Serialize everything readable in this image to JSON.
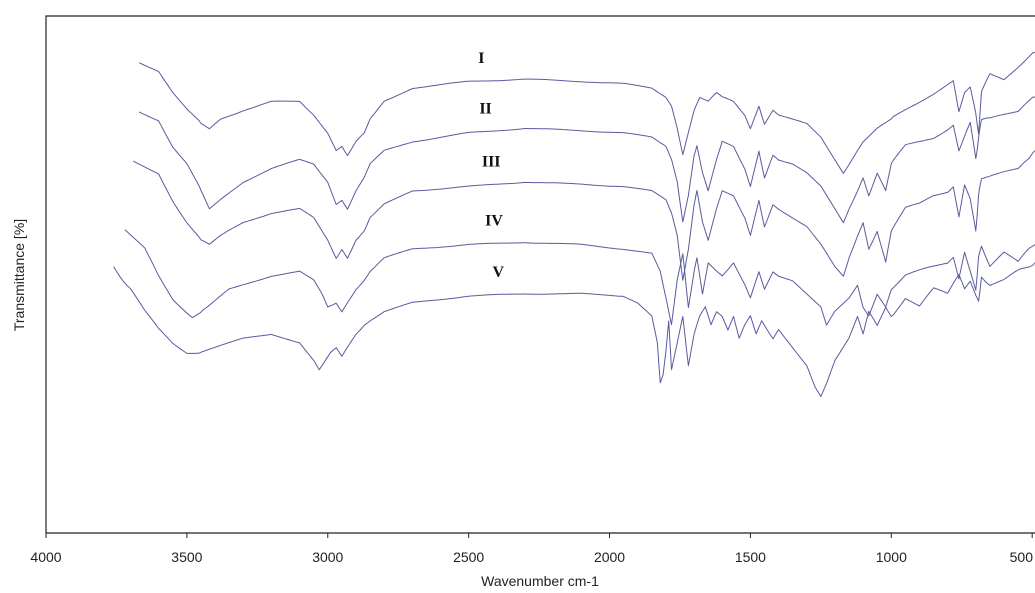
{
  "chart_data": {
    "type": "line",
    "xlabel": "Wavenumber cm-1",
    "ylabel": "Transmittance [%]",
    "xlim": [
      4000,
      490
    ],
    "x_reversed": true,
    "x_ticks": [
      4000,
      3500,
      3000,
      2500,
      2000,
      1500,
      1000,
      500
    ],
    "y_ticks": [],
    "grid": false,
    "legend": "none",
    "series_color": "#5a5aa0",
    "series": [
      {
        "name": "I",
        "x": [
          3670,
          3600,
          3550,
          3500,
          3450,
          3420,
          3380,
          3300,
          3200,
          3100,
          3050,
          3000,
          2970,
          2950,
          2930,
          2900,
          2870,
          2850,
          2800,
          2700,
          2500,
          2300,
          2100,
          1950,
          1850,
          1800,
          1780,
          1760,
          1740,
          1720,
          1700,
          1680,
          1650,
          1620,
          1600,
          1560,
          1520,
          1500,
          1470,
          1450,
          1420,
          1400,
          1350,
          1300,
          1250,
          1200,
          1170,
          1150,
          1120,
          1100,
          1050,
          1000,
          950,
          900,
          850,
          800,
          780,
          760,
          740,
          720,
          700,
          690,
          680,
          650,
          600,
          550,
          510,
          490
        ],
        "y": [
          73,
          71,
          66,
          62,
          59,
          58,
          60,
          62,
          64,
          64,
          61,
          57,
          53,
          54,
          52,
          55,
          57,
          60,
          64,
          67,
          68.5,
          69,
          68.5,
          68,
          67,
          65,
          63,
          58,
          52,
          57,
          62,
          65,
          64,
          66,
          65,
          64,
          61,
          58,
          63,
          59,
          62,
          61,
          60,
          59,
          56,
          51,
          48,
          50,
          53,
          55,
          58,
          60,
          62,
          64,
          66,
          68,
          69,
          62,
          66,
          67,
          61,
          57,
          66,
          70,
          69,
          72,
          74,
          75
        ]
      },
      {
        "name": "II",
        "x": [
          3670,
          3600,
          3550,
          3500,
          3450,
          3420,
          3380,
          3300,
          3200,
          3100,
          3050,
          3000,
          2970,
          2950,
          2930,
          2900,
          2870,
          2850,
          2800,
          2700,
          2500,
          2300,
          2100,
          1950,
          1850,
          1800,
          1780,
          1760,
          1740,
          1720,
          1700,
          1690,
          1670,
          1650,
          1620,
          1600,
          1560,
          1520,
          1500,
          1470,
          1450,
          1420,
          1400,
          1350,
          1300,
          1250,
          1200,
          1170,
          1150,
          1120,
          1100,
          1080,
          1050,
          1020,
          1000,
          950,
          900,
          850,
          800,
          780,
          760,
          740,
          720,
          700,
          690,
          680,
          650,
          600,
          550,
          510,
          490
        ],
        "y": [
          62,
          60,
          54,
          50,
          44,
          40,
          42,
          46,
          49,
          51,
          50,
          46,
          41,
          42,
          40,
          44,
          47,
          50,
          53,
          55,
          57,
          58,
          57.5,
          57,
          56,
          54,
          51,
          46,
          37,
          43,
          52,
          54,
          48,
          44,
          51,
          55,
          54,
          49,
          45,
          53,
          47,
          52,
          51,
          50,
          48,
          45,
          40,
          37,
          40,
          44,
          47,
          43,
          48,
          44,
          50,
          54,
          55,
          56,
          58,
          59,
          53,
          56,
          59,
          51,
          56,
          60,
          60,
          61,
          62,
          64,
          65
        ]
      },
      {
        "name": "III",
        "x": [
          3690,
          3600,
          3550,
          3500,
          3450,
          3420,
          3380,
          3300,
          3200,
          3100,
          3050,
          3000,
          2970,
          2950,
          2930,
          2900,
          2870,
          2850,
          2800,
          2700,
          2500,
          2300,
          2100,
          1950,
          1850,
          1800,
          1780,
          1760,
          1740,
          1720,
          1700,
          1690,
          1670,
          1650,
          1620,
          1600,
          1560,
          1520,
          1500,
          1470,
          1450,
          1420,
          1400,
          1350,
          1300,
          1250,
          1200,
          1170,
          1150,
          1120,
          1100,
          1080,
          1050,
          1020,
          1000,
          950,
          900,
          850,
          800,
          780,
          760,
          740,
          720,
          700,
          690,
          680,
          650,
          600,
          550,
          510,
          490
        ],
        "y": [
          51,
          48,
          42,
          37,
          33,
          32,
          34,
          37,
          39,
          40,
          38,
          33,
          29,
          31,
          29,
          33,
          35,
          38,
          41,
          44,
          45,
          46,
          45.5,
          45,
          44,
          42,
          39,
          34,
          24,
          31,
          41,
          44,
          37,
          33,
          40,
          44,
          43,
          38,
          34,
          42,
          36,
          41,
          40,
          38,
          36,
          32,
          27,
          25,
          29,
          34,
          37,
          31,
          35,
          28,
          35,
          40,
          41,
          43,
          44,
          45,
          38,
          45,
          42,
          35,
          43,
          47,
          47,
          48,
          49,
          51,
          53
        ]
      },
      {
        "name": "IV",
        "x": [
          3720,
          3650,
          3600,
          3550,
          3500,
          3480,
          3430,
          3350,
          3200,
          3100,
          3050,
          3020,
          3000,
          2970,
          2950,
          2930,
          2900,
          2870,
          2850,
          2800,
          2700,
          2500,
          2300,
          2100,
          1950,
          1850,
          1820,
          1800,
          1780,
          1760,
          1740,
          1720,
          1700,
          1690,
          1670,
          1650,
          1620,
          1600,
          1560,
          1520,
          1500,
          1470,
          1450,
          1420,
          1400,
          1350,
          1300,
          1250,
          1230,
          1200,
          1150,
          1120,
          1100,
          1080,
          1050,
          1020,
          1000,
          950,
          900,
          850,
          800,
          780,
          760,
          740,
          720,
          700,
          690,
          680,
          650,
          600,
          550,
          510,
          490
        ],
        "y": [
          35,
          31,
          25,
          20,
          17,
          16,
          18,
          22,
          25,
          26,
          24,
          21,
          18,
          19,
          17,
          19,
          22,
          24,
          26,
          29,
          31,
          32,
          32.5,
          32,
          31,
          30,
          26,
          20,
          14,
          24,
          30,
          18,
          26,
          29,
          21,
          28,
          26,
          25,
          28,
          23,
          20,
          26,
          22,
          26,
          25,
          24,
          21,
          18,
          14,
          17,
          20,
          23,
          18,
          16,
          21,
          18,
          22,
          25,
          26,
          27,
          28,
          29,
          24,
          30,
          26,
          22,
          29,
          32,
          27,
          30,
          28,
          31,
          32
        ]
      },
      {
        "name": "V",
        "x": [
          3760,
          3700,
          3650,
          3600,
          3550,
          3500,
          3450,
          3400,
          3300,
          3200,
          3100,
          3050,
          3030,
          3010,
          2990,
          2970,
          2950,
          2930,
          2900,
          2870,
          2850,
          2800,
          2700,
          2500,
          2300,
          2100,
          1950,
          1900,
          1850,
          1830,
          1820,
          1810,
          1800,
          1790,
          1780,
          1760,
          1740,
          1720,
          1700,
          1680,
          1660,
          1640,
          1620,
          1600,
          1580,
          1560,
          1540,
          1520,
          1500,
          1480,
          1460,
          1440,
          1420,
          1400,
          1350,
          1300,
          1270,
          1250,
          1230,
          1200,
          1150,
          1120,
          1100,
          1080,
          1050,
          1020,
          1000,
          950,
          900,
          850,
          800,
          780,
          760,
          740,
          720,
          700,
          690,
          680,
          650,
          600,
          550,
          510,
          490
        ],
        "y": [
          27,
          22,
          17,
          13,
          10,
          8,
          8,
          9,
          11,
          12,
          10,
          6,
          4,
          6,
          8,
          9,
          7,
          9,
          12,
          14,
          15,
          17,
          19,
          20.5,
          21,
          21,
          20.5,
          19,
          16,
          10,
          1,
          3,
          8,
          15,
          4,
          10,
          16,
          5,
          12,
          16,
          18,
          14,
          17,
          16,
          13,
          16,
          11,
          14,
          16,
          12,
          15,
          13,
          11,
          13,
          9,
          5,
          0,
          -2,
          1,
          6,
          11,
          16,
          12,
          17,
          14,
          18,
          16,
          20,
          18,
          22,
          21,
          23,
          25,
          22,
          24,
          21,
          19,
          25,
          23,
          24,
          26,
          27,
          28
        ]
      }
    ]
  }
}
